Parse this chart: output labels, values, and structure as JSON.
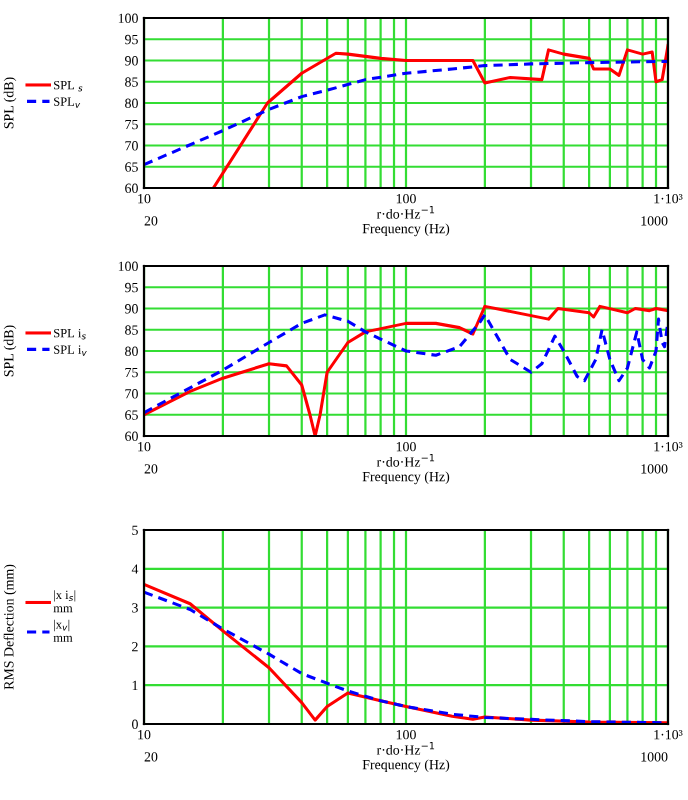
{
  "chart_data": [
    {
      "type": "line",
      "ylabel": "SPL (dB)",
      "xlabel": "r·do·Hz$^{−1}$\nFrequency (Hz)",
      "log": "x",
      "grid": true,
      "legend": "left",
      "annotations": [
        "20",
        "1000"
      ],
      "xlim": [
        10,
        1000
      ],
      "xticks": [
        10,
        {
          "value": 20,
          "label": null
        },
        {
          "value": 30,
          "label": null
        },
        {
          "value": 40,
          "label": null
        },
        {
          "value": 50,
          "label": null
        },
        {
          "value": 60,
          "label": null
        },
        {
          "value": 70,
          "label": null
        },
        {
          "value": 80,
          "label": null
        },
        {
          "value": 90,
          "label": null
        },
        100,
        {
          "value": 200,
          "label": null
        },
        {
          "value": 300,
          "label": null
        },
        {
          "value": 400,
          "label": null
        },
        {
          "value": 500,
          "label": null
        },
        {
          "value": 600,
          "label": null
        },
        {
          "value": 700,
          "label": null
        },
        {
          "value": 800,
          "label": null
        },
        {
          "value": 900,
          "label": null
        },
        {
          "value": 1000,
          "label": "1·10³"
        }
      ],
      "ylim": [
        60,
        100
      ],
      "yticks": [
        60,
        65,
        70,
        75,
        80,
        85,
        90,
        95,
        100
      ],
      "series": [
        {
          "name": "SPL $_{s}$",
          "color": "#ff0000",
          "line_style": "solid",
          "x": [
            18.4,
            29.6,
            40,
            54,
            60,
            80,
            100,
            180,
            200,
            250,
            330,
            350,
            400,
            500,
            520,
            600,
            650,
            700,
            800,
            870,
            900,
            950,
            1000
          ],
          "values": [
            60,
            80,
            87,
            91.7,
            91.5,
            90.5,
            90,
            90,
            84.7,
            86,
            85.5,
            92.5,
            91.5,
            90.5,
            88,
            88,
            86.5,
            92.5,
            91.5,
            92,
            85,
            85.5,
            93.5
          ]
        },
        {
          "name": "SPL$_{v}$",
          "color": "#0000ff",
          "line_style": "dashed",
          "x": [
            10,
            20,
            30,
            40,
            50,
            70,
            100,
            150,
            200,
            300,
            500,
            1000
          ],
          "values": [
            65.5,
            73.5,
            78.5,
            81.5,
            83,
            85.5,
            87,
            88,
            88.8,
            89.2,
            89.5,
            89.8
          ]
        }
      ]
    },
    {
      "type": "line",
      "ylabel": "SPL (dB)",
      "xlabel": "r·do·Hz$^{−1}$\nFrequency (Hz)",
      "log": "x",
      "grid": true,
      "legend": "left",
      "annotations": [
        "20",
        "1000"
      ],
      "xlim": [
        10,
        1000
      ],
      "xticks": [
        10,
        {
          "value": 20,
          "label": null
        },
        {
          "value": 30,
          "label": null
        },
        {
          "value": 40,
          "label": null
        },
        {
          "value": 50,
          "label": null
        },
        {
          "value": 60,
          "label": null
        },
        {
          "value": 70,
          "label": null
        },
        {
          "value": 80,
          "label": null
        },
        {
          "value": 90,
          "label": null
        },
        100,
        {
          "value": 200,
          "label": null
        },
        {
          "value": 300,
          "label": null
        },
        {
          "value": 400,
          "label": null
        },
        {
          "value": 500,
          "label": null
        },
        {
          "value": 600,
          "label": null
        },
        {
          "value": 700,
          "label": null
        },
        {
          "value": 800,
          "label": null
        },
        {
          "value": 900,
          "label": null
        },
        {
          "value": 1000,
          "label": "1·10³"
        }
      ],
      "ylim": [
        60,
        100
      ],
      "yticks": [
        60,
        65,
        70,
        75,
        80,
        85,
        90,
        95,
        100
      ],
      "series": [
        {
          "name": "SPL i$_{s}$",
          "color": "#ff0000",
          "line_style": "solid",
          "x": [
            10,
            15,
            20,
            30,
            35,
            40,
            43,
            45,
            47,
            50,
            60,
            70,
            100,
            130,
            160,
            180,
            200,
            350,
            380,
            500,
            520,
            550,
            700,
            750,
            850,
            900,
            1000
          ],
          "values": [
            65,
            70.5,
            73.6,
            77,
            76.5,
            72,
            65,
            60,
            65,
            75,
            82,
            84.5,
            86.5,
            86.5,
            85.5,
            84,
            90.5,
            87.5,
            90,
            89,
            88,
            90.5,
            89,
            90,
            89.5,
            90,
            89.5
          ]
        },
        {
          "name": "SPL i$_{v}$",
          "color": "#0000ff",
          "line_style": "dashed",
          "x": [
            10,
            20,
            30,
            40,
            49,
            60,
            70,
            100,
            130,
            160,
            190,
            200,
            220,
            250,
            300,
            330,
            370,
            400,
            450,
            480,
            530,
            560,
            600,
            650,
            700,
            760,
            800,
            850,
            900,
            920,
            950,
            970,
            1000
          ],
          "values": [
            65.5,
            75.5,
            82,
            86.5,
            88.5,
            87,
            84.5,
            80,
            79,
            81,
            86.5,
            88.5,
            84,
            78,
            75,
            77,
            83.5,
            80,
            74,
            73,
            78,
            85,
            78,
            73,
            76,
            84.5,
            78,
            76,
            80,
            87.5,
            82,
            81,
            87
          ]
        }
      ]
    },
    {
      "type": "line",
      "ylabel": "RMS Deflection (mm)",
      "xlabel": "r·do·Hz$^{−1}$\nFrequency (Hz)",
      "log": "x",
      "grid": true,
      "legend": "left",
      "annotations": [
        "20",
        "1000"
      ],
      "xlim": [
        10,
        1000
      ],
      "xticks": [
        10,
        {
          "value": 20,
          "label": null
        },
        {
          "value": 30,
          "label": null
        },
        {
          "value": 40,
          "label": null
        },
        {
          "value": 50,
          "label": null
        },
        {
          "value": 60,
          "label": null
        },
        {
          "value": 70,
          "label": null
        },
        {
          "value": 80,
          "label": null
        },
        {
          "value": 90,
          "label": null
        },
        100,
        {
          "value": 200,
          "label": null
        },
        {
          "value": 300,
          "label": null
        },
        {
          "value": 400,
          "label": null
        },
        {
          "value": 500,
          "label": null
        },
        {
          "value": 600,
          "label": null
        },
        {
          "value": 700,
          "label": null
        },
        {
          "value": 800,
          "label": null
        },
        {
          "value": 900,
          "label": null
        },
        {
          "value": 1000,
          "label": "1·10³"
        }
      ],
      "ylim": [
        0,
        5
      ],
      "yticks": [
        0,
        1,
        2,
        3,
        4,
        5
      ],
      "series": [
        {
          "name": "|x i$_{s}$|\nmm",
          "color": "#ff0000",
          "line_style": "solid",
          "x": [
            10,
            15,
            20,
            30,
            40,
            45,
            50,
            60,
            80,
            100,
            150,
            180,
            200,
            300,
            500,
            1000
          ],
          "values": [
            3.6,
            3.1,
            2.4,
            1.45,
            0.55,
            0.1,
            0.45,
            0.8,
            0.6,
            0.45,
            0.2,
            0.12,
            0.18,
            0.1,
            0.05,
            0.03
          ]
        },
        {
          "name": "|x$_{v}$|\nmm",
          "color": "#0000ff",
          "line_style": "dashed",
          "x": [
            10,
            15,
            20,
            30,
            40,
            50,
            60,
            80,
            100,
            150,
            200,
            300,
            500,
            1000
          ],
          "values": [
            3.4,
            2.95,
            2.45,
            1.8,
            1.3,
            1.05,
            0.85,
            0.6,
            0.45,
            0.25,
            0.17,
            0.12,
            0.06,
            0.03
          ]
        }
      ]
    }
  ]
}
